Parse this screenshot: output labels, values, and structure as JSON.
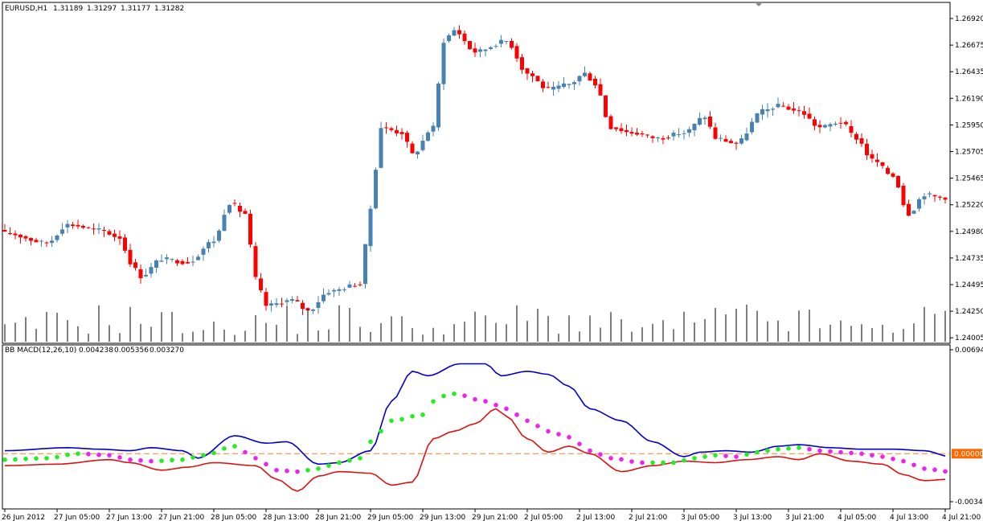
{
  "chart_data": [
    {
      "type": "candlestick",
      "symbol_timeframe": "EURUSD,H1",
      "ohlc_header": [
        "1.31189",
        "1.31297",
        "1.31177",
        "1.31282"
      ],
      "colors": {
        "up": "#4682b4",
        "down": "#ff0000",
        "volume": "#000000",
        "background": "#ffffff"
      },
      "ylim": [
        1.239,
        1.2705
      ],
      "y_ticks": [
        "1.26920",
        "1.26675",
        "1.26435",
        "1.26190",
        "1.25950",
        "1.25705",
        "1.25465",
        "1.25220",
        "1.24980",
        "1.24735",
        "1.24495",
        "1.24250",
        "1.24005"
      ],
      "close_anchors": [
        [
          0,
          1.2492
        ],
        [
          8,
          1.2483
        ],
        [
          12,
          1.25
        ],
        [
          18,
          1.2495
        ],
        [
          22,
          1.2488
        ],
        [
          24,
          1.2465
        ],
        [
          26,
          1.2452
        ],
        [
          30,
          1.2468
        ],
        [
          35,
          1.2465
        ],
        [
          40,
          1.2485
        ],
        [
          43,
          1.252
        ],
        [
          46,
          1.251
        ],
        [
          48,
          1.245
        ],
        [
          50,
          1.2425
        ],
        [
          55,
          1.243
        ],
        [
          58,
          1.242
        ],
        [
          62,
          1.2438
        ],
        [
          68,
          1.2445
        ],
        [
          70,
          1.2515
        ],
        [
          72,
          1.259
        ],
        [
          76,
          1.2585
        ],
        [
          78,
          1.2565
        ],
        [
          82,
          1.259
        ],
        [
          84,
          1.267
        ],
        [
          86,
          1.268
        ],
        [
          90,
          1.266
        ],
        [
          96,
          1.267
        ],
        [
          100,
          1.264
        ],
        [
          104,
          1.2625
        ],
        [
          108,
          1.263
        ],
        [
          111,
          1.264
        ],
        [
          113,
          1.263
        ],
        [
          116,
          1.259
        ],
        [
          120,
          1.2585
        ],
        [
          125,
          1.258
        ],
        [
          130,
          1.2585
        ],
        [
          134,
          1.26
        ],
        [
          136,
          1.258
        ],
        [
          140,
          1.2575
        ],
        [
          145,
          1.2605
        ],
        [
          148,
          1.261
        ],
        [
          152,
          1.2605
        ],
        [
          156,
          1.259
        ],
        [
          160,
          1.2595
        ],
        [
          163,
          1.258
        ],
        [
          166,
          1.256
        ],
        [
          170,
          1.2545
        ],
        [
          173,
          1.251
        ],
        [
          176,
          1.2528
        ],
        [
          179,
          1.2525
        ]
      ],
      "volume_range": [
        0.15,
        1.0
      ]
    },
    {
      "type": "line",
      "title": "BB MACD(12,26,10)",
      "values_header": [
        "0.004238",
        "0.005356",
        "0.003270"
      ],
      "ylim": [
        -0.00342,
        0.00694
      ],
      "y_ticks": [
        "0.00694",
        "0.00000",
        "-0.00342"
      ],
      "zero_label": "0.00000",
      "colors": {
        "upper": "#0000cd",
        "lower": "#dd1111",
        "dots_up": "#22ee22",
        "dots_down": "#ee22ee",
        "zero_line": "#ff7f27",
        "zero_label_bg": "#ff6600"
      },
      "series": [
        {
          "key": "upper",
          "anchors": [
            [
              0,
              0.0002
            ],
            [
              12,
              0.0004
            ],
            [
              18,
              0.0003
            ],
            [
              24,
              0.0002
            ],
            [
              28,
              0.0004
            ],
            [
              34,
              0.0002
            ],
            [
              37,
              -0.0003
            ],
            [
              44,
              0.0012
            ],
            [
              50,
              0.0007
            ],
            [
              54,
              0.0008
            ],
            [
              60,
              -0.0007
            ],
            [
              64,
              -0.0006
            ],
            [
              70,
              0.0002
            ],
            [
              74,
              0.0035
            ],
            [
              78,
              0.0055
            ],
            [
              81,
              0.0052
            ],
            [
              87,
              0.006
            ],
            [
              92,
              0.006
            ],
            [
              95,
              0.0052
            ],
            [
              100,
              0.0055
            ],
            [
              104,
              0.0053
            ],
            [
              108,
              0.0045
            ],
            [
              112,
              0.003
            ],
            [
              118,
              0.0022
            ],
            [
              124,
              0.0008
            ],
            [
              130,
              -0.0002
            ],
            [
              133,
              0.0001
            ],
            [
              138,
              0.0002
            ],
            [
              143,
              0.0001
            ],
            [
              148,
              0.0005
            ],
            [
              152,
              0.0006
            ],
            [
              158,
              0.0004
            ],
            [
              164,
              0.0003
            ],
            [
              170,
              0.0003
            ],
            [
              176,
              0.0002
            ],
            [
              181,
              -0.0002
            ]
          ]
        },
        {
          "key": "lower",
          "anchors": [
            [
              0,
              -0.0008
            ],
            [
              10,
              -0.0007
            ],
            [
              20,
              -0.0004
            ],
            [
              24,
              -0.0006
            ],
            [
              30,
              -0.0011
            ],
            [
              35,
              -0.0009
            ],
            [
              40,
              -0.0006
            ],
            [
              48,
              -0.0008
            ],
            [
              52,
              -0.0017
            ],
            [
              56,
              -0.0025
            ],
            [
              60,
              -0.0015
            ],
            [
              64,
              -0.0012
            ],
            [
              70,
              -0.0013
            ],
            [
              74,
              -0.0021
            ],
            [
              78,
              -0.0019
            ],
            [
              82,
              0.001
            ],
            [
              86,
              0.0015
            ],
            [
              90,
              0.002
            ],
            [
              94,
              0.003
            ],
            [
              96,
              0.0025
            ],
            [
              100,
              0.001
            ],
            [
              104,
              0.0001
            ],
            [
              108,
              0.0005
            ],
            [
              112,
              0.0
            ],
            [
              118,
              -0.0012
            ],
            [
              124,
              -0.0008
            ],
            [
              130,
              -0.0005
            ],
            [
              136,
              -0.0006
            ],
            [
              142,
              -0.0004
            ],
            [
              148,
              -0.0002
            ],
            [
              152,
              -0.0004
            ],
            [
              156,
              0.0
            ],
            [
              162,
              -0.0005
            ],
            [
              168,
              -0.0007
            ],
            [
              172,
              -0.0014
            ],
            [
              176,
              -0.0018
            ],
            [
              181,
              -0.0017
            ]
          ]
        },
        {
          "key": "dots",
          "anchors": [
            [
              0,
              -0.0004
            ],
            [
              8,
              -0.0003
            ],
            [
              14,
              0.0
            ],
            [
              20,
              -0.0001
            ],
            [
              24,
              -0.0004
            ],
            [
              28,
              -0.0005
            ],
            [
              34,
              -0.0004
            ],
            [
              38,
              -0.0001
            ],
            [
              44,
              0.0005
            ],
            [
              48,
              -0.0003
            ],
            [
              52,
              -0.0011
            ],
            [
              56,
              -0.0012
            ],
            [
              60,
              -0.001
            ],
            [
              64,
              -0.0006
            ],
            [
              68,
              -0.0003
            ],
            [
              70,
              0.0008
            ],
            [
              74,
              0.0022
            ],
            [
              80,
              0.0026
            ],
            [
              83,
              0.0038
            ],
            [
              86,
              0.004
            ],
            [
              92,
              0.0035
            ],
            [
              96,
              0.003
            ],
            [
              100,
              0.0022
            ],
            [
              104,
              0.0015
            ],
            [
              108,
              0.0011
            ],
            [
              112,
              0.0002
            ],
            [
              116,
              -0.0003
            ],
            [
              122,
              -0.0006
            ],
            [
              128,
              -0.0006
            ],
            [
              132,
              -0.0003
            ],
            [
              136,
              -0.0001
            ],
            [
              140,
              -0.0002
            ],
            [
              144,
              0.0001
            ],
            [
              148,
              0.0003
            ],
            [
              152,
              0.0004
            ],
            [
              156,
              0.0002
            ],
            [
              160,
              0.0001
            ],
            [
              164,
              0.0
            ],
            [
              168,
              -0.0002
            ],
            [
              172,
              -0.0005
            ],
            [
              176,
              -0.001
            ],
            [
              181,
              -0.0012
            ]
          ]
        }
      ]
    }
  ],
  "x_ticks": [
    {
      "bar": 0,
      "label": "26 Jun 2012"
    },
    {
      "bar": 10,
      "label": "27 Jun 05:00"
    },
    {
      "bar": 20,
      "label": "27 Jun 13:00"
    },
    {
      "bar": 30,
      "label": "27 Jun 21:00"
    },
    {
      "bar": 40,
      "label": "28 Jun 05:00"
    },
    {
      "bar": 50,
      "label": "28 Jun 13:00"
    },
    {
      "bar": 60,
      "label": "28 Jun 21:00"
    },
    {
      "bar": 70,
      "label": "29 Jun 05:00"
    },
    {
      "bar": 80,
      "label": "29 Jun 13:00"
    },
    {
      "bar": 90,
      "label": "29 Jun 21:00"
    },
    {
      "bar": 100,
      "label": "2 Jul 05:00"
    },
    {
      "bar": 110,
      "label": "2 Jul 13:00"
    },
    {
      "bar": 120,
      "label": "2 Jul 21:00"
    },
    {
      "bar": 130,
      "label": "3 Jul 05:00"
    },
    {
      "bar": 140,
      "label": "3 Jul 13:00"
    },
    {
      "bar": 150,
      "label": "3 Jul 21:00"
    },
    {
      "bar": 160,
      "label": "4 Jul 05:00"
    },
    {
      "bar": 170,
      "label": "4 Jul 13:00"
    },
    {
      "bar": 180,
      "label": "4 Jul 21:00"
    }
  ]
}
